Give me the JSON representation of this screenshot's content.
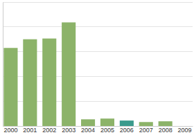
{
  "chart_data": {
    "type": "bar",
    "categories": [
      "2000",
      "2001",
      "2002",
      "2003",
      "2004",
      "2005",
      "2006",
      "2007",
      "2008",
      "2009"
    ],
    "values": [
      3.15,
      3.5,
      3.53,
      4.18,
      0.27,
      0.3,
      0.22,
      0.16,
      0.19,
      0
    ],
    "colors": [
      "#8cb369",
      "#8cb369",
      "#8cb369",
      "#8cb369",
      "#8cb369",
      "#8cb369",
      "#3a9a8c",
      "#8cb369",
      "#8cb369",
      "#8cb369"
    ],
    "ylim": [
      0,
      5
    ],
    "yticks": [
      0,
      1,
      2,
      3,
      4,
      5
    ],
    "grid": true,
    "tick_labels": "x"
  }
}
